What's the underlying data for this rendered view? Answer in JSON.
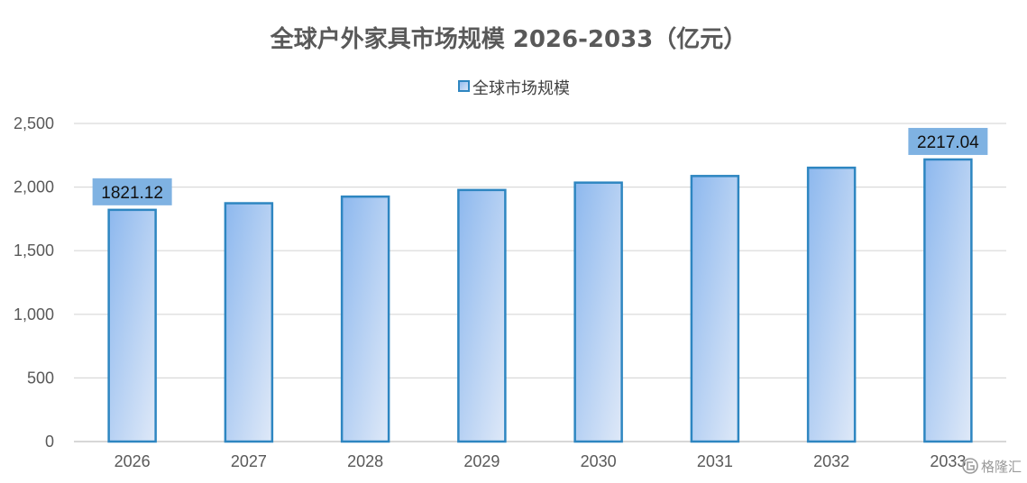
{
  "chart_data": {
    "type": "bar",
    "title": "全球户外家具市场规模 2026-2033（亿元）",
    "categories": [
      "2026",
      "2027",
      "2028",
      "2029",
      "2030",
      "2031",
      "2032",
      "2033"
    ],
    "series": [
      {
        "name": "全球市场规模",
        "values": [
          1821.12,
          1873,
          1925,
          1977,
          2035,
          2087,
          2152,
          2217.04
        ]
      }
    ],
    "data_labels": [
      {
        "category": "2026",
        "text": "1821.12"
      },
      {
        "category": "2033",
        "text": "2217.04"
      }
    ],
    "ylim": [
      0,
      2500
    ],
    "yticks": [
      0,
      500,
      1000,
      1500,
      2000,
      2500
    ],
    "ytick_labels": [
      "0",
      "500",
      "1,000",
      "1,500",
      "2,000",
      "2,500"
    ],
    "xlabel": "",
    "ylabel": "",
    "grid": true,
    "legend_position": "top",
    "colors": {
      "bar_fill_top": "#8db8ee",
      "bar_fill_bottom": "#dce8f8",
      "bar_border": "#2e86c1",
      "label_box": "#7fb2e2",
      "grid": "#d9d9d9",
      "axis": "#bfbfbf"
    }
  },
  "watermark": {
    "icon": "gelonghui-logo-icon",
    "text": "格隆汇"
  }
}
